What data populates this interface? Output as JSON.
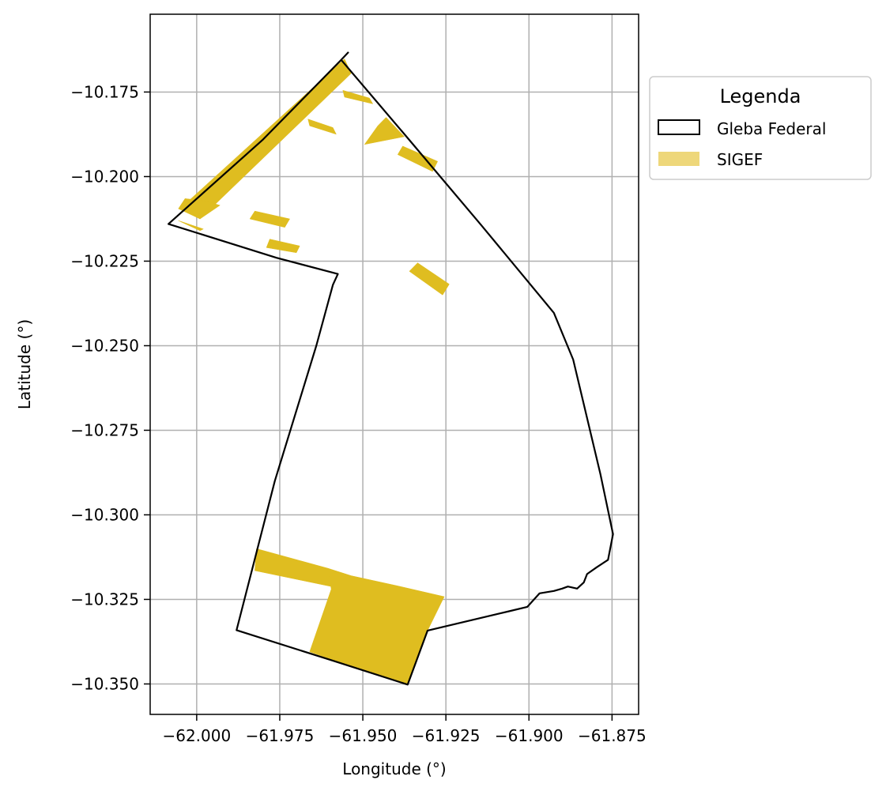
{
  "chart_data": {
    "type": "map",
    "xlabel": "Longitude (°)",
    "ylabel": "Latitude (°)",
    "xlim": [
      -62.014,
      -61.867
    ],
    "ylim": [
      -10.359,
      -10.152
    ],
    "grid": true,
    "x_ticks": [
      -62.0,
      -61.975,
      -61.95,
      -61.925,
      -61.9,
      -61.875
    ],
    "x_tick_labels": [
      "−62.000",
      "−61.975",
      "−61.950",
      "−61.925",
      "−61.900",
      "−61.875"
    ],
    "y_ticks": [
      -10.175,
      -10.2,
      -10.225,
      -10.25,
      -10.275,
      -10.3,
      -10.325,
      -10.35
    ],
    "y_tick_labels": [
      "−10.175",
      "−10.200",
      "−10.225",
      "−10.250",
      "−10.275",
      "−10.300",
      "−10.325",
      "−10.350"
    ],
    "legend": {
      "title": "Legenda",
      "placement": "outside-top-right",
      "entries": [
        {
          "label": "Gleba Federal",
          "kind": "outline",
          "color": "#000000"
        },
        {
          "label": "SIGEF",
          "kind": "fill",
          "color": "#eed77a"
        }
      ]
    },
    "gleba_federal": {
      "stroke": "#000000",
      "fill": "none",
      "coordinates": [
        [
          -61.9543,
          -10.1632
        ],
        [
          -61.9565,
          -10.1655
        ],
        [
          -61.9364,
          -10.1887
        ],
        [
          -61.9144,
          -10.2143
        ],
        [
          -61.8925,
          -10.2403
        ],
        [
          -61.8867,
          -10.2541
        ],
        [
          -61.8785,
          -10.288
        ],
        [
          -61.8747,
          -10.3057
        ],
        [
          -61.8762,
          -10.3133
        ],
        [
          -61.8796,
          -10.3155
        ],
        [
          -61.8825,
          -10.3175
        ],
        [
          -61.8835,
          -10.32
        ],
        [
          -61.8855,
          -10.3218
        ],
        [
          -61.8883,
          -10.3212
        ],
        [
          -61.89,
          -10.3218
        ],
        [
          -61.8925,
          -10.3225
        ],
        [
          -61.8968,
          -10.3232
        ],
        [
          -61.9005,
          -10.3272
        ],
        [
          -61.906,
          -10.3285
        ],
        [
          -61.9305,
          -10.3342
        ],
        [
          -61.9365,
          -10.3502
        ],
        [
          -61.96,
          -10.3428
        ],
        [
          -61.988,
          -10.3341
        ],
        [
          -61.9765,
          -10.29
        ],
        [
          -61.964,
          -10.25
        ],
        [
          -61.959,
          -10.232
        ],
        [
          -61.9575,
          -10.2288
        ],
        [
          -61.976,
          -10.224
        ],
        [
          -62.0085,
          -10.214
        ],
        [
          -61.98,
          -10.189
        ],
        [
          -61.9565,
          -10.1655
        ]
      ]
    },
    "sigef": {
      "fill": "#dfbd20",
      "polygons": [
        [
          [
            -61.9555,
            -10.1652
          ],
          [
            -61.9535,
            -10.1695
          ],
          [
            -61.999,
            -10.2125
          ],
          [
            -62.005,
            -10.2095
          ]
        ],
        [
          [
            -62.0035,
            -10.2065
          ],
          [
            -61.9975,
            -10.2072
          ],
          [
            -61.993,
            -10.2085
          ],
          [
            -61.999,
            -10.2125
          ],
          [
            -62.0055,
            -10.2095
          ]
        ],
        [
          [
            -62.0055,
            -10.213
          ],
          [
            -62.0045,
            -10.2135
          ],
          [
            -61.999,
            -10.216
          ],
          [
            -61.998,
            -10.2155
          ]
        ],
        [
          [
            -61.9825,
            -10.2102
          ],
          [
            -61.972,
            -10.2125
          ],
          [
            -61.9735,
            -10.215
          ],
          [
            -61.984,
            -10.2125
          ]
        ],
        [
          [
            -61.978,
            -10.2185
          ],
          [
            -61.969,
            -10.2205
          ],
          [
            -61.97,
            -10.2225
          ],
          [
            -61.979,
            -10.221
          ]
        ],
        [
          [
            -61.956,
            -10.1745
          ],
          [
            -61.948,
            -10.1768
          ],
          [
            -61.947,
            -10.1785
          ],
          [
            -61.9555,
            -10.1765
          ]
        ],
        [
          [
            -61.9665,
            -10.183
          ],
          [
            -61.959,
            -10.1855
          ],
          [
            -61.958,
            -10.1875
          ],
          [
            -61.966,
            -10.185
          ]
        ],
        [
          [
            -61.943,
            -10.1825
          ],
          [
            -61.9375,
            -10.1882
          ],
          [
            -61.9495,
            -10.1905
          ],
          [
            -61.9455,
            -10.185
          ]
        ],
        [
          [
            -61.938,
            -10.191
          ],
          [
            -61.9275,
            -10.1955
          ],
          [
            -61.929,
            -10.1985
          ],
          [
            -61.9395,
            -10.1935
          ]
        ],
        [
          [
            -61.9335,
            -10.2255
          ],
          [
            -61.924,
            -10.2318
          ],
          [
            -61.926,
            -10.235
          ],
          [
            -61.936,
            -10.228
          ]
        ],
        [
          [
            -61.982,
            -10.31
          ],
          [
            -61.9605,
            -10.3158
          ],
          [
            -61.958,
            -10.3215
          ],
          [
            -61.9825,
            -10.3165
          ]
        ],
        [
          [
            -61.9605,
            -10.3158
          ],
          [
            -61.9535,
            -10.318
          ],
          [
            -61.9395,
            -10.321
          ],
          [
            -61.9255,
            -10.3242
          ],
          [
            -61.9305,
            -10.3342
          ],
          [
            -61.9365,
            -10.3502
          ],
          [
            -61.9515,
            -10.3455
          ],
          [
            -61.966,
            -10.3405
          ],
          [
            -61.9595,
            -10.322
          ]
        ]
      ]
    }
  }
}
